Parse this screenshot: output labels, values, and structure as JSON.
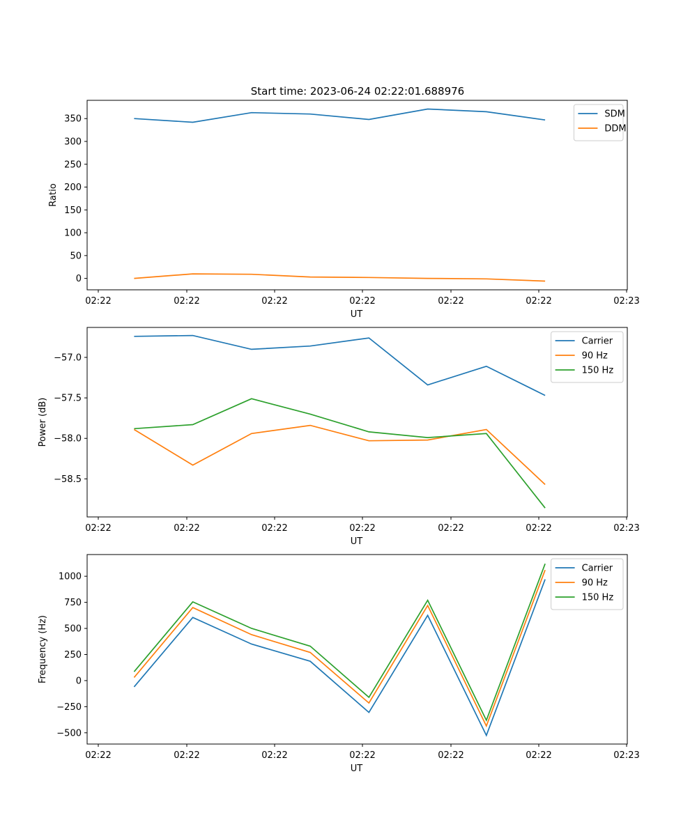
{
  "figure_title": "Start time: 2023-06-24 02:22:01.688976",
  "chart_data": [
    {
      "type": "line",
      "xlabel": "UT",
      "ylabel": "Ratio",
      "x_tick_labels": [
        "02:22",
        "02:22",
        "02:22",
        "02:22",
        "02:22",
        "02:22",
        "02:23"
      ],
      "x": [
        1,
        2,
        3,
        4,
        5,
        6,
        7,
        8
      ],
      "xlim": [
        0.2,
        9.4
      ],
      "ylim": [
        -25,
        390
      ],
      "yticks": [
        0,
        50,
        100,
        150,
        200,
        250,
        300,
        350
      ],
      "legend_position": "top-right",
      "series": [
        {
          "name": "SDM",
          "color": "#1f77b4",
          "values": [
            350,
            342,
            363,
            360,
            348,
            371,
            365,
            347
          ]
        },
        {
          "name": "DDM",
          "color": "#ff7f0e",
          "values": [
            0,
            10,
            9,
            3,
            2,
            0,
            -1,
            -6
          ]
        }
      ]
    },
    {
      "type": "line",
      "xlabel": "UT",
      "ylabel": "Power (dB)",
      "x_tick_labels": [
        "02:22",
        "02:22",
        "02:22",
        "02:22",
        "02:22",
        "02:22",
        "02:23"
      ],
      "x": [
        1,
        2,
        3,
        4,
        5,
        6,
        7,
        8
      ],
      "xlim": [
        0.2,
        9.4
      ],
      "ylim": [
        -58.97,
        -56.63
      ],
      "yticks": [
        -57.0,
        -57.5,
        -58.0,
        -58.5
      ],
      "ytick_labels": [
        "−57.0",
        "−57.5",
        "−58.0",
        "−58.5"
      ],
      "legend_position": "top-right",
      "series": [
        {
          "name": "Carrier",
          "color": "#1f77b4",
          "values": [
            -56.74,
            -56.73,
            -56.9,
            -56.86,
            -56.76,
            -57.34,
            -57.11,
            -57.47
          ]
        },
        {
          "name": "90 Hz",
          "color": "#ff7f0e",
          "values": [
            -57.89,
            -58.33,
            -57.94,
            -57.84,
            -58.03,
            -58.02,
            -57.89,
            -58.57
          ]
        },
        {
          "name": "150 Hz",
          "color": "#2ca02c",
          "values": [
            -57.88,
            -57.83,
            -57.51,
            -57.7,
            -57.92,
            -57.99,
            -57.94,
            -58.86
          ]
        }
      ]
    },
    {
      "type": "line",
      "xlabel": "UT",
      "ylabel": "Frequency (Hz)",
      "x_tick_labels": [
        "02:22",
        "02:22",
        "02:22",
        "02:22",
        "02:22",
        "02:22",
        "02:23"
      ],
      "x": [
        1,
        2,
        3,
        4,
        5,
        6,
        7,
        8
      ],
      "xlim": [
        0.2,
        9.4
      ],
      "ylim": [
        -608,
        1208
      ],
      "yticks": [
        -500,
        -250,
        0,
        250,
        500,
        750,
        1000
      ],
      "ytick_labels": [
        "−500",
        "−250",
        "0",
        "250",
        "500",
        "750",
        "1000"
      ],
      "legend_position": "top-right",
      "series": [
        {
          "name": "Carrier",
          "color": "#1f77b4",
          "values": [
            -60,
            605,
            350,
            185,
            -305,
            625,
            -525,
            970
          ]
        },
        {
          "name": "90 Hz",
          "color": "#ff7f0e",
          "values": [
            30,
            700,
            440,
            270,
            -215,
            720,
            -435,
            1060
          ]
        },
        {
          "name": "150 Hz",
          "color": "#2ca02c",
          "values": [
            85,
            755,
            500,
            330,
            -160,
            770,
            -380,
            1120
          ]
        }
      ]
    }
  ]
}
